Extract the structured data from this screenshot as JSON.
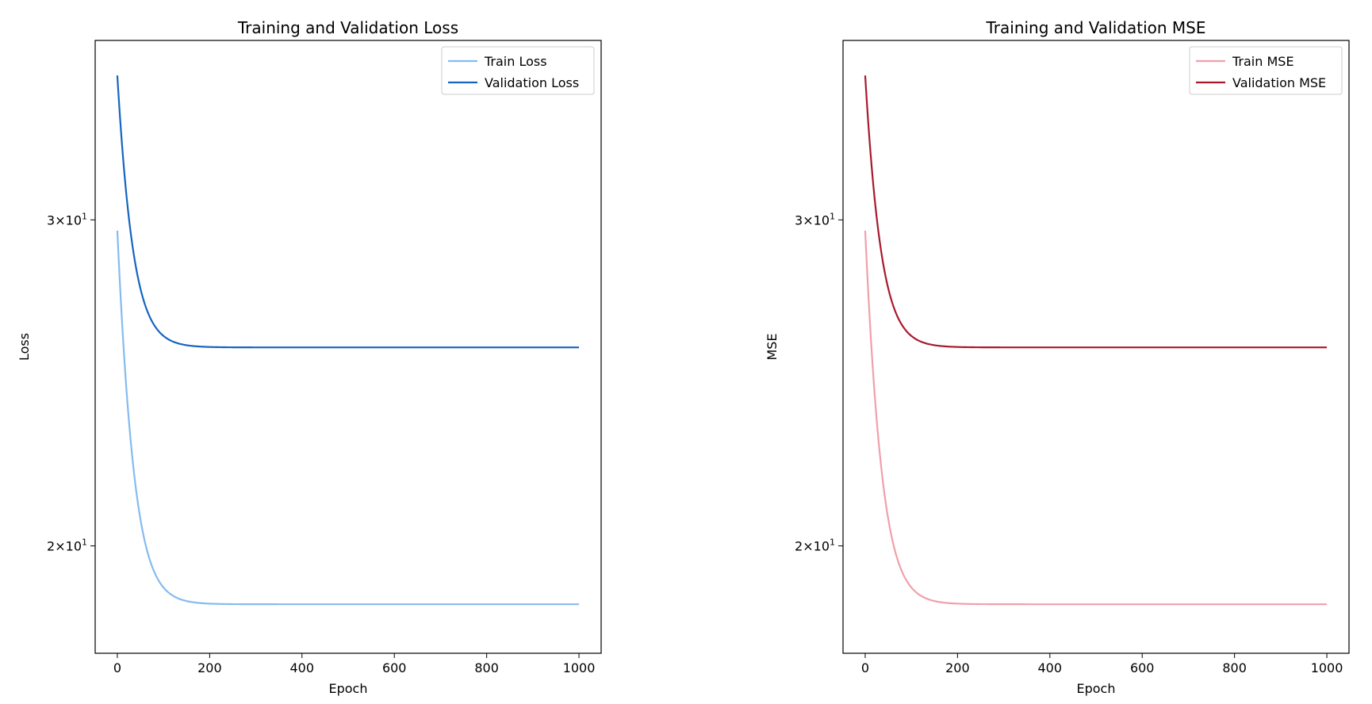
{
  "chart_data": [
    {
      "type": "line",
      "title": "Training and Validation Loss",
      "xlabel": "Epoch",
      "ylabel": "Loss",
      "yscale": "log",
      "xlim": [
        -48,
        1048
      ],
      "ylim": [
        17.5,
        37.5
      ],
      "x_ticks": [
        0,
        200,
        400,
        600,
        800,
        1000
      ],
      "y_ticks": [
        {
          "value": 20,
          "mantissa": "2",
          "base": "10",
          "exp": "1"
        },
        {
          "value": 30,
          "mantissa": "3",
          "base": "10",
          "exp": "1"
        }
      ],
      "grid": false,
      "legend": "top-right",
      "series": [
        {
          "name": "Train Loss",
          "color": "#85bbf0",
          "start": 29.6,
          "end": 18.6,
          "tau": 30
        },
        {
          "name": "Validation Loss",
          "color": "#1565c0",
          "start": 35.9,
          "end": 25.6,
          "tau": 30
        }
      ]
    },
    {
      "type": "line",
      "title": "Training and Validation MSE",
      "xlabel": "Epoch",
      "ylabel": "MSE",
      "yscale": "log",
      "xlim": [
        -48,
        1048
      ],
      "ylim": [
        17.5,
        37.5
      ],
      "x_ticks": [
        0,
        200,
        400,
        600,
        800,
        1000
      ],
      "y_ticks": [
        {
          "value": 20,
          "mantissa": "2",
          "base": "10",
          "exp": "1"
        },
        {
          "value": 30,
          "mantissa": "3",
          "base": "10",
          "exp": "1"
        }
      ],
      "grid": false,
      "legend": "top-right",
      "series": [
        {
          "name": "Train MSE",
          "color": "#f0a0aa",
          "start": 29.6,
          "end": 18.6,
          "tau": 30
        },
        {
          "name": "Validation MSE",
          "color": "#a8192e",
          "start": 35.9,
          "end": 25.6,
          "tau": 30
        }
      ]
    }
  ]
}
